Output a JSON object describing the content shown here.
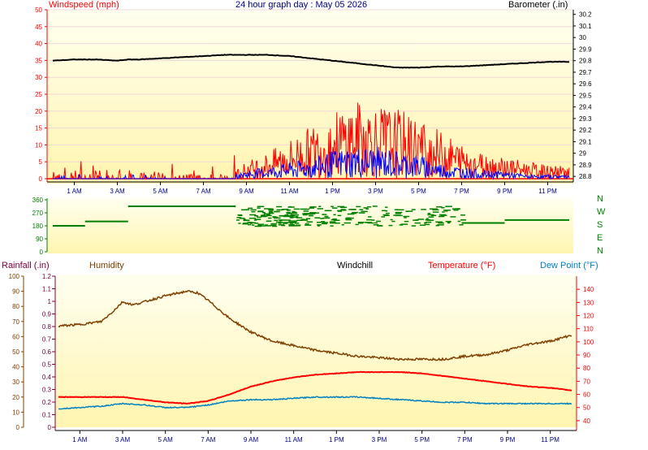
{
  "header": {
    "title": "24 hour graph day : May 05 2026",
    "wind_label": "Windspeed (mph)",
    "baro_label": "Barometer (.in)"
  },
  "bottom_header": {
    "rain_label": "Rainfall (.in)",
    "humidity_label": "Humidity",
    "windchill_label": "Windchill",
    "temperature_label": "Temperature (°F)",
    "dewpoint_label": "Dew Point (°F)"
  },
  "compass": {
    "labels": [
      "N",
      "W",
      "S",
      "E",
      "N"
    ],
    "ticks": [
      "360",
      "270",
      "180",
      "90",
      "0"
    ]
  },
  "colors": {
    "wind": "#ff0000",
    "gust": "#0000ff",
    "barometer": "#000000",
    "direction": "#008000",
    "humidity": "#804000",
    "temperature": "#ff0000",
    "dewpoint": "#0080c0",
    "rain_axis": "#800040",
    "bg_top": "#fffff0",
    "bg_bottom": "#fff5b0"
  },
  "chart_data": [
    {
      "type": "line",
      "name": "wind_barometer",
      "x_categories": [
        "1 AM",
        "3 AM",
        "5 AM",
        "7 AM",
        "9 AM",
        "11 AM",
        "1 PM",
        "3 PM",
        "5 PM",
        "7 PM",
        "9 PM",
        "11 PM"
      ],
      "y_left_ticks": [
        "0",
        "5",
        "10",
        "15",
        "20",
        "25",
        "30",
        "35",
        "40",
        "45",
        "50"
      ],
      "y_left_range": [
        0,
        50
      ],
      "y_right_ticks": [
        "28.8",
        "28.9",
        "29",
        "29.1",
        "29.2",
        "29.3",
        "29.4",
        "29.5",
        "29.6",
        "29.7",
        "29.8",
        "29.9",
        "30",
        "30.1",
        "30.2"
      ],
      "y_right_range": [
        28.78,
        30.24
      ],
      "series": [
        {
          "key": "barometer",
          "x_hours": [
            0,
            1,
            2,
            3,
            3.5,
            4,
            5,
            6,
            7,
            8,
            9,
            10,
            11,
            12,
            13,
            14,
            15,
            16,
            17,
            18,
            19,
            20,
            21,
            22,
            23,
            24
          ],
          "values": [
            29.8,
            29.81,
            29.81,
            29.8,
            29.81,
            29.81,
            29.82,
            29.83,
            29.84,
            29.85,
            29.85,
            29.85,
            29.84,
            29.82,
            29.8,
            29.78,
            29.76,
            29.74,
            29.74,
            29.75,
            29.75,
            29.76,
            29.77,
            29.78,
            29.79,
            29.79
          ]
        },
        {
          "key": "wind_envelope",
          "x_hours": [
            0,
            2,
            4,
            6,
            8,
            8.5,
            9,
            10,
            11,
            12,
            13,
            14,
            15,
            16,
            17,
            18,
            19,
            20,
            21,
            22,
            23,
            24
          ],
          "values": [
            3,
            2,
            2,
            1,
            1,
            2,
            4,
            6,
            9,
            12,
            15,
            18,
            17,
            16,
            14,
            11,
            8,
            6,
            5,
            4,
            3,
            3
          ]
        },
        {
          "key": "gust_envelope",
          "x_hours": [
            0,
            2,
            4,
            6,
            8,
            8.5,
            9,
            10,
            11,
            12,
            13,
            14,
            15,
            16,
            17,
            18,
            19,
            20,
            21,
            22,
            23,
            24
          ],
          "values": [
            1,
            1,
            1,
            0,
            0,
            1,
            2,
            3,
            4,
            5,
            7,
            8,
            8,
            7,
            6,
            4,
            3,
            2,
            2,
            1,
            1,
            1
          ]
        }
      ]
    },
    {
      "type": "scatter",
      "name": "wind_direction",
      "y_range": [
        0,
        360
      ],
      "segments": [
        {
          "x_hours": [
            0,
            1.5
          ],
          "value": 180
        },
        {
          "x_hours": [
            1.5,
            3.5
          ],
          "value": 210
        },
        {
          "x_hours": [
            3.5,
            8.5
          ],
          "value": 315
        },
        {
          "x_hours": [
            8.5,
            12
          ],
          "value": "variable"
        },
        {
          "x_hours": [
            12,
            19
          ],
          "value": "variable"
        },
        {
          "x_hours": [
            19,
            21
          ],
          "value": 200
        },
        {
          "x_hours": [
            21,
            24
          ],
          "value": 220
        }
      ]
    },
    {
      "type": "line",
      "name": "humidity_temperature",
      "x_categories": [
        "1 AM",
        "3 AM",
        "5 AM",
        "7 AM",
        "9 AM",
        "11 AM",
        "1 PM",
        "3 PM",
        "5 PM",
        "7 PM",
        "9 PM",
        "11 PM"
      ],
      "y_humidity_ticks": [
        "0",
        "10",
        "20",
        "30",
        "40",
        "50",
        "60",
        "70",
        "80",
        "90",
        "100"
      ],
      "y_humidity_range": [
        0,
        100
      ],
      "y_rain_ticks": [
        "0",
        "0.1",
        "0.2",
        "0.3",
        "0.4",
        "0.5",
        "0.6",
        "0.7",
        "0.8",
        "0.9",
        "1",
        "1.1",
        "1.2"
      ],
      "y_rain_range": [
        0,
        1.2
      ],
      "y_temp_ticks": [
        "40",
        "50",
        "60",
        "70",
        "80",
        "90",
        "100",
        "110",
        "120",
        "130",
        "140"
      ],
      "y_temp_range": [
        35,
        150
      ],
      "series": [
        {
          "key": "humidity",
          "x_hours": [
            0,
            1,
            2,
            2.5,
            3,
            3.5,
            4,
            5,
            6,
            6.5,
            7,
            8,
            9,
            10,
            11,
            12,
            13,
            14,
            15,
            16,
            17,
            18,
            19,
            20,
            21,
            22,
            23,
            24
          ],
          "values": [
            67,
            68,
            70,
            76,
            83,
            81,
            83,
            87,
            90,
            89,
            84,
            72,
            63,
            57,
            54,
            51,
            49,
            47,
            46,
            45,
            45,
            45,
            47,
            48,
            51,
            55,
            57,
            61
          ]
        },
        {
          "key": "temperature",
          "x_hours": [
            0,
            1,
            2,
            3,
            4,
            5,
            6,
            7,
            8,
            9,
            10,
            11,
            12,
            13,
            14,
            15,
            16,
            17,
            18,
            19,
            20,
            21,
            22,
            23,
            24
          ],
          "values": [
            58,
            58,
            58,
            58,
            56,
            54,
            53,
            55,
            60,
            66,
            70,
            73,
            75,
            76,
            77,
            77,
            77,
            76,
            74,
            72,
            70,
            68,
            66,
            65,
            63
          ]
        },
        {
          "key": "dewpoint",
          "x_hours": [
            0,
            1,
            2,
            3,
            4,
            5,
            6,
            7,
            8,
            9,
            10,
            11,
            12,
            13,
            14,
            15,
            16,
            17,
            18,
            19,
            20,
            21,
            22,
            23,
            24
          ],
          "values": [
            49,
            50,
            51,
            53,
            52,
            50,
            50,
            52,
            55,
            56,
            56,
            57,
            58,
            58,
            58,
            57,
            56,
            55,
            54,
            54,
            53,
            53,
            53,
            53,
            53
          ]
        }
      ]
    }
  ]
}
